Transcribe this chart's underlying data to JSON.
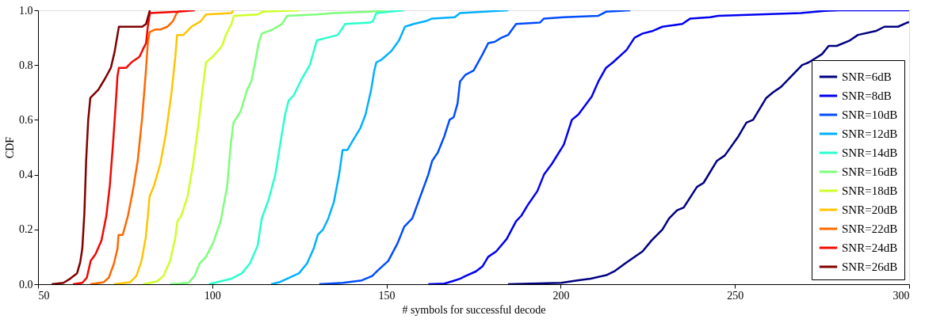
{
  "chart_data": {
    "type": "line",
    "xlabel": "# symbols for successful decode",
    "ylabel": "CDF",
    "xlim": [
      50,
      300
    ],
    "ylim": [
      0,
      1
    ],
    "xticks": [
      50,
      100,
      150,
      200,
      250,
      300
    ],
    "yticks": [
      {
        "value": 0,
        "label": "0.0"
      },
      {
        "value": 0.2,
        "label": "0.2"
      },
      {
        "value": 0.4,
        "label": "0.4"
      },
      {
        "value": 0.6,
        "label": "0.6"
      },
      {
        "value": 0.8,
        "label": "0.8"
      },
      {
        "value": 1,
        "label": "1.0"
      }
    ],
    "grid": false,
    "legend": "bottom right",
    "marker": "none",
    "line_style": "solid",
    "series": [
      {
        "name": "SNR=6dB",
        "color": "#000080",
        "x": [
          184.9,
          200.2,
          204.7,
          208.6,
          213.1,
          215.4,
          218.5,
          221.2,
          223.5,
          226.1,
          229.2,
          231.1,
          233.4,
          235.3,
          239.1,
          241.0,
          244.8,
          247.1,
          251.0,
          253.3,
          255.2,
          259.0,
          260.9,
          263.2,
          269.3,
          271.2,
          275.0,
          276.9,
          279.2,
          283.0,
          285.3,
          290.6,
          292.9,
          296.8,
          299.4,
          300
        ],
        "values": [
          0,
          0.005,
          0.014,
          0.02,
          0.033,
          0.047,
          0.076,
          0.1,
          0.12,
          0.16,
          0.2,
          0.24,
          0.27,
          0.28,
          0.355,
          0.37,
          0.45,
          0.47,
          0.54,
          0.59,
          0.6,
          0.68,
          0.7,
          0.72,
          0.8,
          0.81,
          0.84,
          0.87,
          0.87,
          0.89,
          0.91,
          0.925,
          0.94,
          0.94,
          0.955,
          0.957
        ]
      },
      {
        "name": "SNR=8dB",
        "color": "#0000f1",
        "x": [
          162.0,
          166.6,
          168.9,
          171.1,
          172.7,
          175.7,
          177.6,
          179.2,
          181.5,
          184.5,
          187.2,
          188.7,
          190.6,
          193.3,
          195.2,
          197.5,
          200.9,
          203.2,
          205.1,
          208.9,
          210.8,
          213.0,
          215.0,
          218.9,
          221.2,
          223.5,
          226.5,
          229.2,
          234.9,
          237.2,
          242.9,
          245.2,
          268.9,
          275.8,
          280,
          300
        ],
        "values": [
          0,
          0.002,
          0.011,
          0.02,
          0.03,
          0.047,
          0.066,
          0.1,
          0.12,
          0.165,
          0.23,
          0.25,
          0.29,
          0.34,
          0.4,
          0.44,
          0.51,
          0.6,
          0.62,
          0.685,
          0.74,
          0.79,
          0.81,
          0.855,
          0.9,
          0.915,
          0.925,
          0.94,
          0.95,
          0.97,
          0.975,
          0.98,
          0.99,
          0.998,
          1,
          1
        ]
      },
      {
        "name": "SNR=10dB",
        "color": "#004cff",
        "x": [
          130.7,
          137.5,
          142.9,
          145.9,
          147.5,
          150.5,
          153.2,
          155.1,
          157.4,
          159.7,
          162.0,
          163.1,
          164.7,
          166.6,
          168.1,
          169.3,
          170.4,
          171.1,
          172.7,
          175.0,
          177.6,
          179.2,
          181.1,
          183.0,
          184.9,
          187.2,
          194.0,
          195.2,
          200.9,
          210.8,
          213.1,
          220
        ],
        "values": [
          0,
          0.005,
          0.014,
          0.03,
          0.05,
          0.085,
          0.15,
          0.21,
          0.24,
          0.32,
          0.4,
          0.45,
          0.48,
          0.54,
          0.6,
          0.61,
          0.66,
          0.74,
          0.765,
          0.78,
          0.84,
          0.88,
          0.885,
          0.9,
          0.91,
          0.95,
          0.955,
          0.97,
          0.975,
          0.98,
          0.995,
          1
        ]
      },
      {
        "name": "SNR=12dB",
        "color": "#00b0ff",
        "x": [
          116.9,
          119.2,
          122.2,
          124.9,
          127.2,
          129.1,
          130.3,
          131.8,
          133.3,
          134.9,
          136.4,
          137.4,
          138.8,
          140.6,
          142.5,
          144.0,
          145.6,
          146.5,
          147.1,
          148.6,
          151.3,
          153.6,
          155.3,
          157.8,
          161.2,
          163.1,
          169.6,
          171.1,
          185
        ],
        "values": [
          0,
          0.007,
          0.024,
          0.04,
          0.076,
          0.13,
          0.18,
          0.2,
          0.24,
          0.3,
          0.4,
          0.49,
          0.49,
          0.53,
          0.57,
          0.62,
          0.71,
          0.78,
          0.81,
          0.82,
          0.85,
          0.89,
          0.94,
          0.95,
          0.96,
          0.97,
          0.975,
          0.99,
          1
        ]
      },
      {
        "name": "SNR=14dB",
        "color": "#29ffce",
        "x": [
          99.0,
          105.5,
          108.5,
          110.8,
          113.0,
          114.2,
          116.2,
          118.1,
          119.6,
          120.9,
          121.9,
          123.4,
          125.7,
          128.0,
          129.1,
          130.0,
          133.0,
          136.0,
          137.1,
          138.1,
          145.2,
          146.1,
          147.1,
          155
        ],
        "values": [
          0,
          0.02,
          0.04,
          0.076,
          0.14,
          0.24,
          0.31,
          0.4,
          0.52,
          0.62,
          0.67,
          0.69,
          0.75,
          0.8,
          0.85,
          0.89,
          0.9,
          0.91,
          0.93,
          0.95,
          0.955,
          0.96,
          0.99,
          1
        ]
      },
      {
        "name": "SNR=16dB",
        "color": "#7dff7a",
        "x": [
          87.9,
          93.2,
          94.9,
          96.4,
          98.2,
          100.2,
          102.4,
          104.3,
          105.3,
          106.1,
          108.1,
          110.0,
          111.2,
          112.3,
          113.3,
          114.2,
          117.3,
          120.0,
          121.5,
          129.9,
          135.2,
          145.2,
          150
        ],
        "values": [
          0,
          0.005,
          0.03,
          0.076,
          0.1,
          0.15,
          0.23,
          0.36,
          0.51,
          0.59,
          0.63,
          0.71,
          0.74,
          0.81,
          0.88,
          0.915,
          0.93,
          0.95,
          0.98,
          0.985,
          0.99,
          0.995,
          1
        ]
      },
      {
        "name": "SNR=18dB",
        "color": "#ceff29",
        "x": [
          80.2,
          84.1,
          86.0,
          87.9,
          89.4,
          90.0,
          91.1,
          92.9,
          94.4,
          95.9,
          97.2,
          98.2,
          100.1,
          102.8,
          103.9,
          105.5,
          106.2,
          113.1,
          114.6,
          125
        ],
        "values": [
          0,
          0.01,
          0.03,
          0.085,
          0.17,
          0.23,
          0.25,
          0.32,
          0.43,
          0.57,
          0.71,
          0.81,
          0.83,
          0.87,
          0.91,
          0.95,
          0.98,
          0.985,
          0.995,
          1
        ]
      },
      {
        "name": "SNR=20dB",
        "color": "#ffc400",
        "x": [
          71.8,
          76.4,
          78.2,
          79.7,
          80.9,
          81.6,
          82.0,
          83.3,
          85.1,
          86.7,
          88.3,
          89.4,
          89.9,
          91.7,
          94.0,
          96.7,
          98.2,
          105.5,
          106
        ],
        "values": [
          0,
          0.007,
          0.03,
          0.085,
          0.17,
          0.26,
          0.32,
          0.36,
          0.44,
          0.55,
          0.7,
          0.83,
          0.91,
          0.91,
          0.94,
          0.96,
          0.985,
          0.99,
          1
        ]
      },
      {
        "name": "SNR=22dB",
        "color": "#ff6800",
        "x": [
          65.0,
          68.8,
          70.3,
          71.8,
          72.8,
          73.1,
          74.3,
          75.8,
          77.2,
          78.6,
          79.9,
          80.9,
          81.5,
          82.0,
          83.7,
          85.2,
          87.1,
          88.7,
          89.8,
          91.0
        ],
        "values": [
          0,
          0.007,
          0.024,
          0.076,
          0.13,
          0.18,
          0.18,
          0.25,
          0.34,
          0.45,
          0.61,
          0.77,
          0.88,
          0.92,
          0.93,
          0.93,
          0.94,
          0.96,
          0.99,
          1
        ]
      },
      {
        "name": "SNR=24dB",
        "color": "#f10800",
        "x": [
          60.0,
          62.7,
          64.0,
          65.1,
          66.5,
          68.2,
          69.6,
          70.6,
          71.5,
          72.2,
          72.8,
          73.2,
          75.3,
          76.8,
          79.1,
          80.2,
          81.0,
          81.5,
          82.1,
          90.2,
          95
        ],
        "values": [
          0,
          0.005,
          0.024,
          0.085,
          0.11,
          0.16,
          0.25,
          0.36,
          0.51,
          0.64,
          0.76,
          0.79,
          0.79,
          0.81,
          0.83,
          0.86,
          0.88,
          0.94,
          0.99,
          0.995,
          1
        ]
      },
      {
        "name": "SNR=26dB",
        "color": "#800000",
        "x": [
          53.9,
          57.3,
          59.2,
          61.2,
          62.1,
          62.7,
          63.3,
          63.8,
          64.4,
          65.0,
          67.3,
          69.2,
          70.9,
          72.0,
          72.8,
          73.2,
          79.9,
          81.0,
          82.1
        ],
        "values": [
          0,
          0.005,
          0.02,
          0.04,
          0.08,
          0.13,
          0.26,
          0.45,
          0.6,
          0.68,
          0.71,
          0.75,
          0.79,
          0.85,
          0.91,
          0.94,
          0.94,
          0.95,
          1
        ]
      }
    ]
  }
}
